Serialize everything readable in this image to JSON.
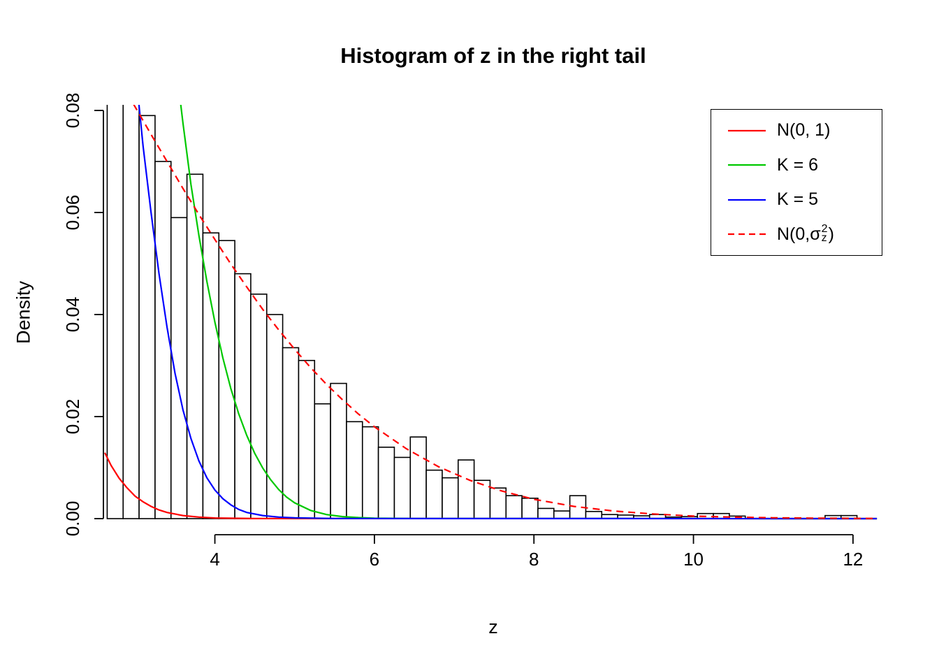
{
  "chart_data": {
    "type": "bar",
    "title": "Histogram of z in the right tail",
    "xlabel": "z",
    "ylabel": "Density",
    "xlim": [
      2.62,
      12.36
    ],
    "ylim": [
      0,
      0.0811
    ],
    "x_ticks": [
      {
        "value": 4,
        "label": "4"
      },
      {
        "value": 6,
        "label": "6"
      },
      {
        "value": 8,
        "label": "8"
      },
      {
        "value": 10,
        "label": "10"
      },
      {
        "value": 12,
        "label": "12"
      }
    ],
    "y_ticks": [
      {
        "value": 0.0,
        "label": "0.00"
      },
      {
        "value": 0.02,
        "label": "0.02"
      },
      {
        "value": 0.04,
        "label": "0.04"
      },
      {
        "value": 0.06,
        "label": "0.06"
      },
      {
        "value": 0.08,
        "label": "0.08"
      }
    ],
    "histogram": {
      "bin_start": 2.65,
      "bin_width": 0.2,
      "bar_fill": "#ffffff",
      "bar_stroke": "#000000",
      "densities": [
        0.09,
        0.09,
        0.079,
        0.07,
        0.059,
        0.0675,
        0.056,
        0.0545,
        0.048,
        0.044,
        0.04,
        0.0335,
        0.031,
        0.0225,
        0.0265,
        0.019,
        0.018,
        0.014,
        0.012,
        0.016,
        0.0095,
        0.008,
        0.0115,
        0.0075,
        0.006,
        0.0045,
        0.004,
        0.002,
        0.0015,
        0.0045,
        0.0014,
        0.0008,
        0.0007,
        0.00055,
        0.0008,
        0.0003,
        0.0004,
        0.001,
        0.001,
        0.0005,
        0,
        0,
        0,
        0,
        0,
        0.0006,
        0.0006,
        0
      ]
    },
    "series": [
      {
        "id": "n01",
        "name": "N(0, 1)",
        "color": "#ff0000",
        "dash": false,
        "points": [
          [
            2.62,
            0.0129
          ],
          [
            2.7,
            0.0104
          ],
          [
            2.8,
            0.0079
          ],
          [
            2.9,
            0.006
          ],
          [
            3.0,
            0.0044
          ],
          [
            3.1,
            0.0033
          ],
          [
            3.2,
            0.0024
          ],
          [
            3.3,
            0.0017
          ],
          [
            3.4,
            0.0012
          ],
          [
            3.6,
            0.0006
          ],
          [
            3.8,
            0.0003
          ],
          [
            4.0,
            0.00013
          ],
          [
            4.5,
            2e-05
          ],
          [
            5.0,
            1e-05
          ],
          [
            12.3,
            0
          ]
        ]
      },
      {
        "id": "k6",
        "name": "K = 6",
        "color": "#00c800",
        "dash": false,
        "points": [
          [
            3.48,
            0.0975
          ],
          [
            3.55,
            0.084
          ],
          [
            3.6,
            0.0775
          ],
          [
            3.7,
            0.0655
          ],
          [
            3.8,
            0.0555
          ],
          [
            3.9,
            0.0465
          ],
          [
            4.0,
            0.0385
          ],
          [
            4.1,
            0.0315
          ],
          [
            4.2,
            0.0255
          ],
          [
            4.3,
            0.0205
          ],
          [
            4.4,
            0.0163
          ],
          [
            4.5,
            0.0128
          ],
          [
            4.6,
            0.0099
          ],
          [
            4.7,
            0.0076
          ],
          [
            4.8,
            0.0057
          ],
          [
            4.9,
            0.0042
          ],
          [
            5.0,
            0.0031
          ],
          [
            5.2,
            0.0016
          ],
          [
            5.4,
            0.0008
          ],
          [
            5.6,
            0.0004
          ],
          [
            5.8,
            0.0002
          ],
          [
            6.0,
            0.0001
          ],
          [
            6.5,
            3e-05
          ],
          [
            12.3,
            0
          ]
        ]
      },
      {
        "id": "k5",
        "name": "K = 5",
        "color": "#0000ff",
        "dash": false,
        "points": [
          [
            2.97,
            0.0975
          ],
          [
            3.03,
            0.084
          ],
          [
            3.1,
            0.073
          ],
          [
            3.2,
            0.06
          ],
          [
            3.3,
            0.048
          ],
          [
            3.4,
            0.0375
          ],
          [
            3.5,
            0.0285
          ],
          [
            3.6,
            0.0213
          ],
          [
            3.7,
            0.0157
          ],
          [
            3.8,
            0.0113
          ],
          [
            3.9,
            0.008
          ],
          [
            4.0,
            0.0056
          ],
          [
            4.1,
            0.0039
          ],
          [
            4.2,
            0.0027
          ],
          [
            4.3,
            0.0018
          ],
          [
            4.4,
            0.0012
          ],
          [
            4.6,
            0.0006
          ],
          [
            4.8,
            0.0003
          ],
          [
            5.0,
            0.00015
          ],
          [
            5.5,
            3e-05
          ],
          [
            12.3,
            0
          ]
        ]
      },
      {
        "id": "n0-sigma2",
        "name": "N(0, sigma_z^2)",
        "color": "#ff0000",
        "dash": true,
        "points": [
          [
            2.78,
            0.0875
          ],
          [
            2.9,
            0.0834
          ],
          [
            3.0,
            0.0807
          ],
          [
            3.2,
            0.0753
          ],
          [
            3.4,
            0.07
          ],
          [
            3.6,
            0.0647
          ],
          [
            3.8,
            0.0596
          ],
          [
            4.0,
            0.0547
          ],
          [
            4.2,
            0.0499
          ],
          [
            4.4,
            0.0454
          ],
          [
            4.6,
            0.041
          ],
          [
            4.8,
            0.037
          ],
          [
            5.0,
            0.0332
          ],
          [
            5.2,
            0.0296
          ],
          [
            5.4,
            0.0263
          ],
          [
            5.6,
            0.0233
          ],
          [
            5.8,
            0.0205
          ],
          [
            6.0,
            0.018
          ],
          [
            6.4,
            0.0137
          ],
          [
            6.8,
            0.0102
          ],
          [
            7.2,
            0.0075
          ],
          [
            7.6,
            0.0054
          ],
          [
            8.0,
            0.0038
          ],
          [
            8.5,
            0.0024
          ],
          [
            9.0,
            0.0015
          ],
          [
            9.5,
            0.0009
          ],
          [
            10.0,
            0.0005
          ],
          [
            10.5,
            0.0003
          ],
          [
            11.0,
            0.00016
          ],
          [
            11.5,
            9e-05
          ],
          [
            12.0,
            5e-05
          ],
          [
            12.3,
            3e-05
          ]
        ]
      }
    ],
    "legend": [
      {
        "label": "N(0, 1)",
        "color": "#ff0000",
        "dash": false
      },
      {
        "label": "K = 6",
        "color": "#00c800",
        "dash": false
      },
      {
        "label": "K = 5",
        "color": "#0000ff",
        "dash": false
      },
      {
        "label": "N(0, sigma_z^2)",
        "color": "#ff0000",
        "dash": true,
        "parts": {
          "prefix": "N(0, ",
          "base": "σ",
          "sup": "2",
          "sub": "z",
          "suffix": ")"
        }
      }
    ]
  }
}
